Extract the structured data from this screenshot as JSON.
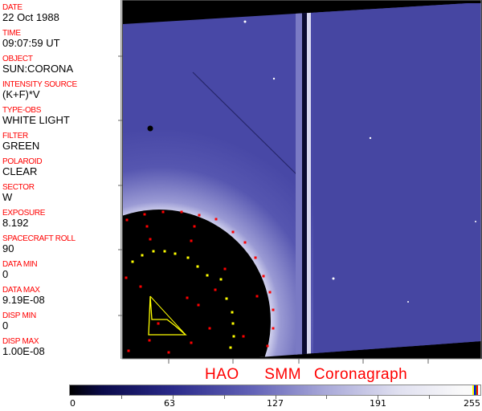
{
  "header_fields": [
    {
      "label": "DATE",
      "value": "22 Oct 1988"
    },
    {
      "label": "TIME",
      "value": "09:07:59 UT"
    },
    {
      "label": "OBJECT",
      "value": "SUN:CORONA"
    },
    {
      "label": "INTENSITY SOURCE",
      "value": "(K+F)*V"
    },
    {
      "label": "TYPE-OBS",
      "value": "WHITE LIGHT"
    },
    {
      "label": "FILTER",
      "value": "GREEN"
    },
    {
      "label": "POLAROID",
      "value": "CLEAR"
    },
    {
      "label": "SECTOR",
      "value": "W"
    },
    {
      "label": "EXPOSURE",
      "value": "8.192"
    },
    {
      "label": "SPACECRAFT ROLL",
      "value": "90"
    },
    {
      "label": "DATA MIN",
      "value": "0"
    },
    {
      "label": "DATA MAX",
      "value": "9.19E-08"
    },
    {
      "label": "DISP MIN",
      "value": "0"
    },
    {
      "label": "DISP MAX",
      "value": "1.00E-08"
    }
  ],
  "title": "HAO  SMM Coronagraph",
  "colorbar": {
    "ticks": [
      "0",
      "63",
      "127",
      "191",
      "255"
    ],
    "colormap": "black-blue-white",
    "top_colors": [
      "#ffff00",
      "#0000ff",
      "#00c000",
      "#ff0000"
    ]
  },
  "colors": {
    "label": "#ff0000",
    "overlay_red": "#ff0000",
    "overlay_yellow": "#ffff00",
    "corona": "#4a4aa8"
  }
}
